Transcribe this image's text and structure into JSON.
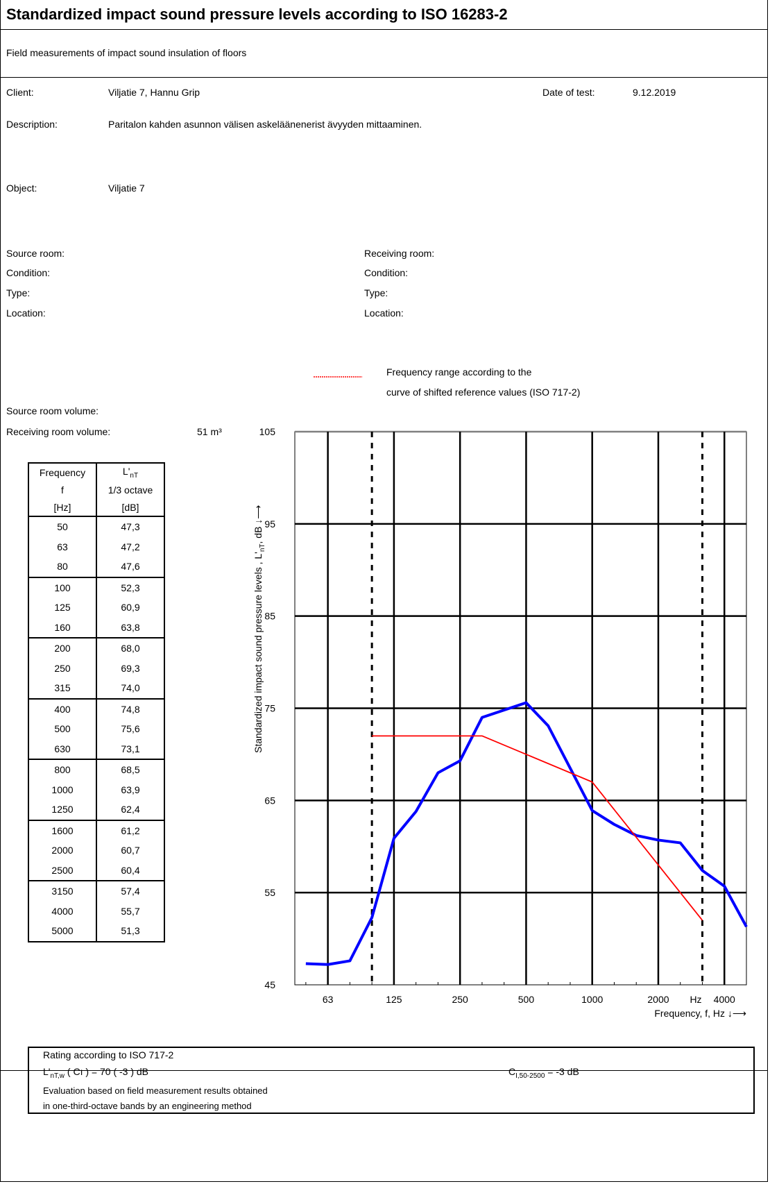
{
  "header": {
    "title": "Standardized impact sound pressure levels according to ISO 16283-2",
    "subtitle": "Field measurements of impact sound insulation of floors"
  },
  "info": {
    "client_label": "Client:",
    "client_value": "Viljatie 7, Hannu Grip",
    "date_label": "Date of test:",
    "date_value": "9.12.2019",
    "description_label": "Description:",
    "description_value": "Paritalon kahden asunnon välisen askeläänenerist ävyyden mittaaminen.",
    "object_label": "Object:",
    "object_value": "Viljatie 7",
    "source_room_label": "Source room:",
    "receiving_room_label": "Receiving room:",
    "condition_label": "Condition:",
    "type_label": "Type:",
    "location_label": "Location:"
  },
  "legend": {
    "line1": "Frequency range according to the",
    "line2": "curve of shifted reference values (ISO 717-2)",
    "line_color": "#ff0000"
  },
  "volumes": {
    "source_label": "Source room volume:",
    "receiving_label": "Receiving room volume:",
    "receiving_value": "51 m³"
  },
  "table": {
    "head_freq": [
      "Frequency",
      "f",
      "[Hz]"
    ],
    "head_level_main": "L'",
    "head_level_sub": "nT",
    "head_level_rest": [
      "1/3 octave",
      "[dB]"
    ],
    "rows": [
      [
        "50",
        "47,3"
      ],
      [
        "63",
        "47,2"
      ],
      [
        "80",
        "47,6"
      ],
      [
        "100",
        "52,3"
      ],
      [
        "125",
        "60,9"
      ],
      [
        "160",
        "63,8"
      ],
      [
        "200",
        "68,0"
      ],
      [
        "250",
        "69,3"
      ],
      [
        "315",
        "74,0"
      ],
      [
        "400",
        "74,8"
      ],
      [
        "500",
        "75,6"
      ],
      [
        "630",
        "73,1"
      ],
      [
        "800",
        "68,5"
      ],
      [
        "1000",
        "63,9"
      ],
      [
        "1250",
        "62,4"
      ],
      [
        "1600",
        "61,2"
      ],
      [
        "2000",
        "60,7"
      ],
      [
        "2500",
        "60,4"
      ],
      [
        "3150",
        "57,4"
      ],
      [
        "4000",
        "55,7"
      ],
      [
        "5000",
        "51,3"
      ]
    ]
  },
  "chart_data": {
    "type": "line",
    "ylabel_main": "Standardized impact sound pressure levels , L'",
    "ylabel_sub": "nT",
    "ylabel_rest": ", dB ↓⟶",
    "xlabel": "Frequency, f, Hz ↓⟶",
    "hz_label": "Hz",
    "ylim": [
      45,
      105
    ],
    "y_ticks": [
      "105",
      "95",
      "85",
      "75",
      "65",
      "55",
      "45"
    ],
    "x_tick_labels": [
      "63",
      "125",
      "250",
      "500",
      "1000",
      "2000",
      "4000"
    ],
    "x": [
      "50",
      "63",
      "80",
      "100",
      "125",
      "160",
      "200",
      "250",
      "315",
      "400",
      "500",
      "630",
      "800",
      "1000",
      "1250",
      "1600",
      "2000",
      "2500",
      "3150",
      "4000",
      "5000"
    ],
    "series": [
      {
        "color": "#0000ff",
        "values": [
          47.3,
          47.2,
          47.6,
          52.3,
          60.9,
          63.8,
          68.0,
          69.3,
          74.0,
          74.8,
          75.6,
          73.1,
          68.5,
          63.9,
          62.4,
          61.2,
          60.7,
          60.4,
          57.4,
          55.7,
          51.3
        ]
      },
      {
        "color": "#ff0000",
        "x": [
          "100",
          "315",
          "1000",
          "3150"
        ],
        "values": [
          72,
          72,
          67,
          52
        ]
      }
    ],
    "range_lines_x": [
      "100",
      "3150"
    ]
  },
  "rating": {
    "title": "Rating according to ISO 717-2",
    "formula_main": "L'",
    "formula_sub": "nT,w",
    "formula_rest": " ( Cı ) =  70   (    -3   ) dB",
    "ci_main": "C",
    "ci_sub": "I,50-2500",
    "ci_rest": " = -3  dB",
    "eval1": "Evaluation based on field measurement results obtained",
    "eval2": "in one-third-octave bands by an engineering method"
  }
}
